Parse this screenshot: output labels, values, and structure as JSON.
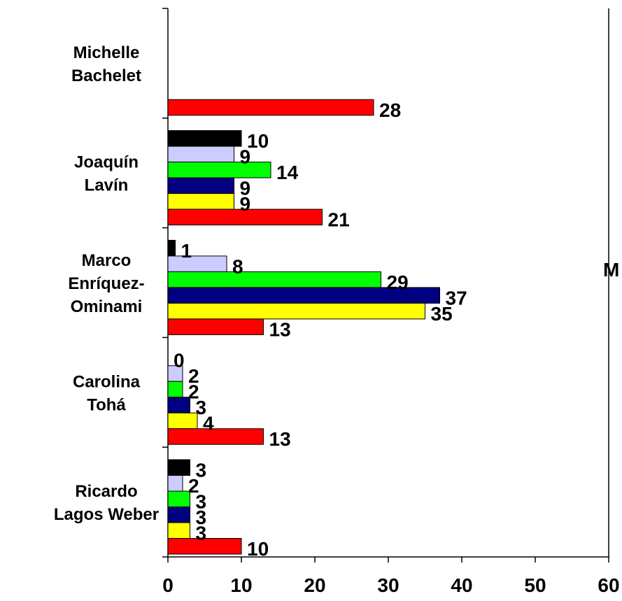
{
  "chart_data": {
    "type": "bar",
    "orientation": "horizontal",
    "categories": [
      [
        "Michelle",
        "Bachelet"
      ],
      [
        "Joaquín",
        "Lavín"
      ],
      [
        "Marco",
        "Enríquez-",
        "Ominami"
      ],
      [
        "Carolina",
        "Tohá"
      ],
      [
        "Ricardo",
        "Lagos Weber"
      ]
    ],
    "series": [
      {
        "color": "#000000",
        "values": [
          null,
          10,
          1,
          0,
          3
        ]
      },
      {
        "color": "#ccccff",
        "values": [
          null,
          9,
          8,
          2,
          2
        ]
      },
      {
        "color": "#00ff00",
        "values": [
          null,
          14,
          29,
          2,
          3
        ]
      },
      {
        "color": "#000080",
        "values": [
          null,
          9,
          37,
          3,
          3
        ]
      },
      {
        "color": "#ffff00",
        "values": [
          null,
          9,
          35,
          4,
          3
        ]
      },
      {
        "color": "#ff0000",
        "values": [
          28,
          21,
          13,
          13,
          10
        ]
      }
    ],
    "x_ticks": [
      "0",
      "10",
      "20",
      "30",
      "40",
      "50",
      "60"
    ],
    "xlim": [
      0,
      60
    ],
    "grid": false,
    "legend_fragment": "M"
  }
}
